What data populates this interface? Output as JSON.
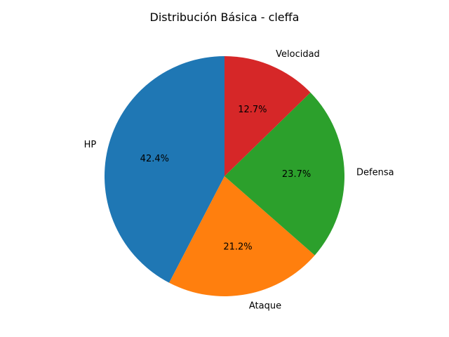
{
  "chart_data": {
    "type": "pie",
    "title": "Distribución Básica - cleffa",
    "categories": [
      "HP",
      "Ataque",
      "Defensa",
      "Velocidad"
    ],
    "values": [
      50,
      25,
      28,
      15
    ],
    "percent_labels": [
      "42.4%",
      "21.2%",
      "23.7%",
      "12.7%"
    ],
    "colors": [
      "#1f77b4",
      "#ff7f0e",
      "#2ca02c",
      "#d62728"
    ],
    "start_angle_deg": 90,
    "direction": "counterclockwise"
  }
}
